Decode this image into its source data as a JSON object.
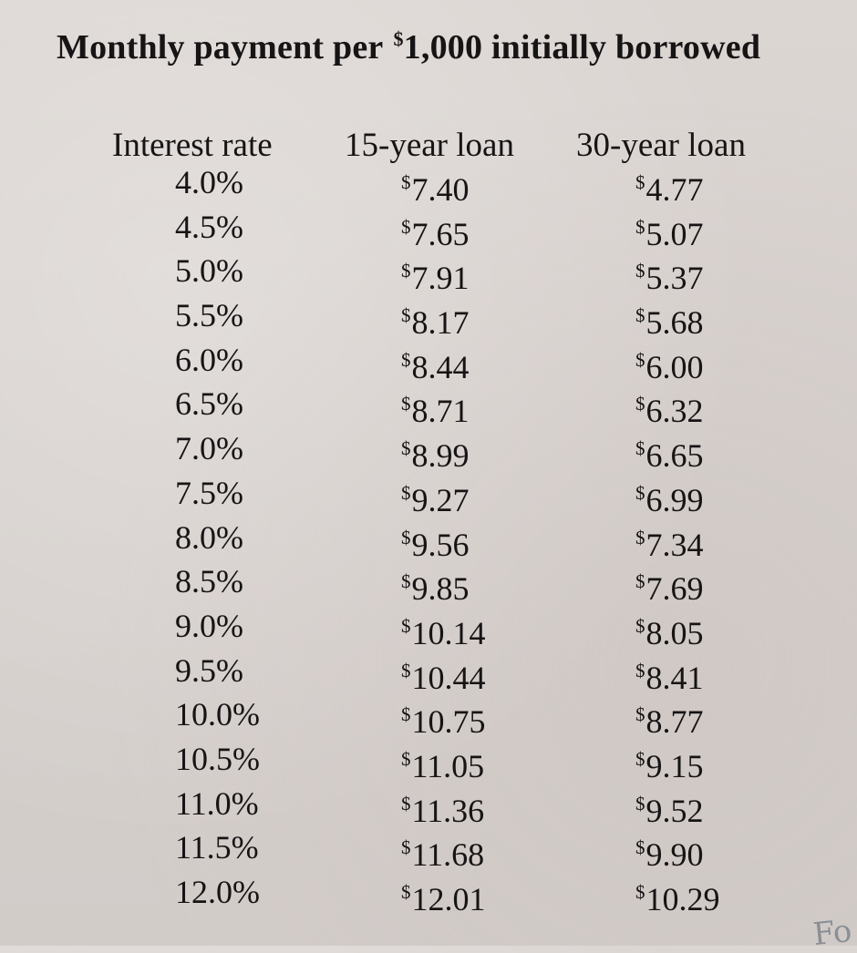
{
  "title": {
    "before": "Monthly payment per ",
    "currency": "$",
    "after": "1,000 initially borrowed"
  },
  "headers": {
    "rate": "Interest rate",
    "loan15": "15-year loan",
    "loan30": "30-year loan"
  },
  "currency_symbol": "$",
  "rows": [
    {
      "rate": "4.0%",
      "loan15": "7.40",
      "loan30": "4.77"
    },
    {
      "rate": "4.5%",
      "loan15": "7.65",
      "loan30": "5.07"
    },
    {
      "rate": "5.0%",
      "loan15": "7.91",
      "loan30": "5.37"
    },
    {
      "rate": "5.5%",
      "loan15": "8.17",
      "loan30": "5.68"
    },
    {
      "rate": "6.0%",
      "loan15": "8.44",
      "loan30": "6.00"
    },
    {
      "rate": "6.5%",
      "loan15": "8.71",
      "loan30": "6.32"
    },
    {
      "rate": "7.0%",
      "loan15": "8.99",
      "loan30": "6.65"
    },
    {
      "rate": "7.5%",
      "loan15": "9.27",
      "loan30": "6.99"
    },
    {
      "rate": "8.0%",
      "loan15": "9.56",
      "loan30": "7.34"
    },
    {
      "rate": "8.5%",
      "loan15": "9.85",
      "loan30": "7.69"
    },
    {
      "rate": "9.0%",
      "loan15": "10.14",
      "loan30": "8.05"
    },
    {
      "rate": "9.5%",
      "loan15": "10.44",
      "loan30": "8.41"
    },
    {
      "rate": "10.0%",
      "loan15": "10.75",
      "loan30": "8.77"
    },
    {
      "rate": "10.5%",
      "loan15": "11.05",
      "loan30": "9.15"
    },
    {
      "rate": "11.0%",
      "loan15": "11.36",
      "loan30": "9.52"
    },
    {
      "rate": "11.5%",
      "loan15": "11.68",
      "loan30": "9.90"
    },
    {
      "rate": "12.0%",
      "loan15": "12.01",
      "loan30": "10.29"
    }
  ],
  "corner_handwriting": "Fo"
}
